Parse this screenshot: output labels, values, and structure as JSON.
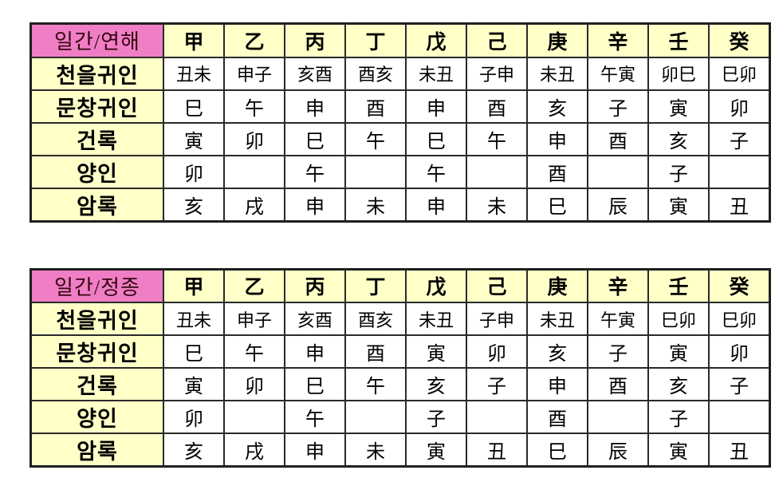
{
  "colors": {
    "title_cell_bg": "#EF7EC5",
    "title_cell_text": "#35060F",
    "header_and_label_bg": "#FFFFC8",
    "data_cell_bg": "#FFFFFF",
    "data_text": "#000000",
    "border": "#2A2A2A"
  },
  "stems": [
    "甲",
    "乙",
    "丙",
    "丁",
    "戊",
    "己",
    "庚",
    "辛",
    "壬",
    "癸"
  ],
  "tables": [
    {
      "title": "일간/연해",
      "rows": [
        {
          "label": "천을귀인",
          "values": [
            "丑未",
            "申子",
            "亥酉",
            "酉亥",
            "未丑",
            "子申",
            "未丑",
            "午寅",
            "卯巳",
            "巳卯"
          ]
        },
        {
          "label": "문창귀인",
          "values": [
            "巳",
            "午",
            "申",
            "酉",
            "申",
            "酉",
            "亥",
            "子",
            "寅",
            "卯"
          ]
        },
        {
          "label": "건록",
          "values": [
            "寅",
            "卯",
            "巳",
            "午",
            "巳",
            "午",
            "申",
            "酉",
            "亥",
            "子"
          ]
        },
        {
          "label": "양인",
          "values": [
            "卯",
            "",
            "午",
            "",
            "午",
            "",
            "酉",
            "",
            "子",
            ""
          ]
        },
        {
          "label": "암록",
          "values": [
            "亥",
            "戌",
            "申",
            "未",
            "申",
            "未",
            "巳",
            "辰",
            "寅",
            "丑"
          ]
        }
      ]
    },
    {
      "title": "일간/정종",
      "rows": [
        {
          "label": "천을귀인",
          "values": [
            "丑未",
            "申子",
            "亥酉",
            "酉亥",
            "未丑",
            "子申",
            "未丑",
            "午寅",
            "巳卯",
            "巳卯"
          ]
        },
        {
          "label": "문창귀인",
          "values": [
            "巳",
            "午",
            "申",
            "酉",
            "寅",
            "卯",
            "亥",
            "子",
            "寅",
            "卯"
          ]
        },
        {
          "label": "건록",
          "values": [
            "寅",
            "卯",
            "巳",
            "午",
            "亥",
            "子",
            "申",
            "酉",
            "亥",
            "子"
          ]
        },
        {
          "label": "양인",
          "values": [
            "卯",
            "",
            "午",
            "",
            "子",
            "",
            "酉",
            "",
            "子",
            ""
          ]
        },
        {
          "label": "암록",
          "values": [
            "亥",
            "戌",
            "申",
            "未",
            "寅",
            "丑",
            "巳",
            "辰",
            "寅",
            "丑"
          ]
        }
      ]
    }
  ]
}
